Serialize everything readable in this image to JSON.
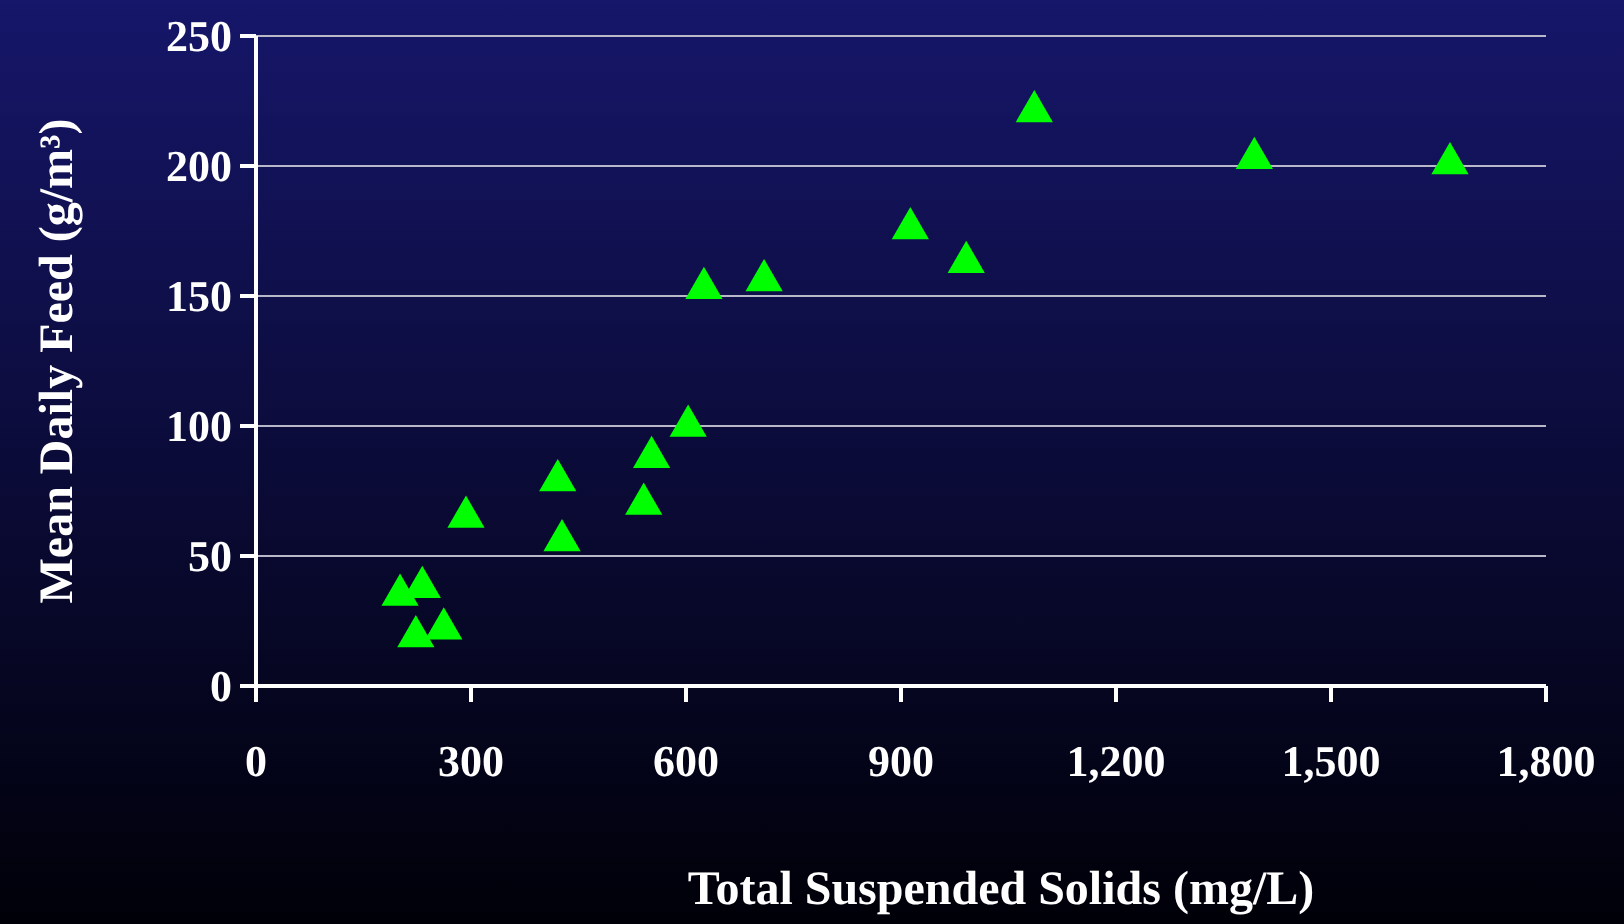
{
  "chart_data": {
    "type": "scatter",
    "xlabel": "Total Suspended Solids (mg/L)",
    "ylabel": "Mean Daily Feed (g/m³)",
    "x": [
      201,
      232,
      223,
      262,
      293,
      421,
      427,
      541,
      552,
      603,
      625,
      709,
      913,
      991,
      1086,
      1393,
      1666
    ],
    "series": [
      {
        "color": "#00ff00",
        "values": [
          35,
          38,
          19,
          22,
          65,
          79,
          56,
          70,
          88,
          100,
          153,
          156,
          176,
          163,
          221,
          203,
          201
        ]
      }
    ],
    "xlim": [
      0,
      1800
    ],
    "ylim": [
      0,
      250
    ],
    "xticks": [
      0,
      300,
      600,
      900,
      {
        "value": 1200,
        "label": "1,200"
      },
      {
        "value": 1500,
        "label": "1,500"
      },
      {
        "value": 1800,
        "label": "1,800"
      }
    ],
    "yticks": [
      0,
      50,
      100,
      150,
      200,
      250
    ],
    "grid": "y",
    "marker": "triangle"
  }
}
